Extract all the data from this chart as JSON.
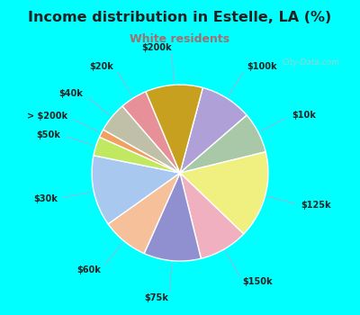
{
  "title": "Income distribution in Estelle, LA (%)",
  "subtitle": "White residents",
  "background_top": "#00FFFF",
  "background_chart_color": "#d8efe8",
  "title_color": "#222222",
  "subtitle_color": "#a07070",
  "labels": [
    "$100k",
    "$10k",
    "$125k",
    "$150k",
    "$75k",
    "$60k",
    "$30k",
    "$50k",
    "> $200k",
    "$40k",
    "$20k",
    "$200k"
  ],
  "values": [
    9.5,
    7.5,
    16.0,
    9.0,
    10.5,
    8.5,
    13.0,
    3.5,
    1.5,
    5.5,
    5.0,
    10.5
  ],
  "colors": [
    "#b0a0d8",
    "#a8c8a8",
    "#f0f080",
    "#f0b0c0",
    "#9090d0",
    "#f5c09a",
    "#a8c8f0",
    "#c0e860",
    "#f0a060",
    "#c0c0a8",
    "#e89098",
    "#c8a020"
  ],
  "watermark": "City-Data.com"
}
